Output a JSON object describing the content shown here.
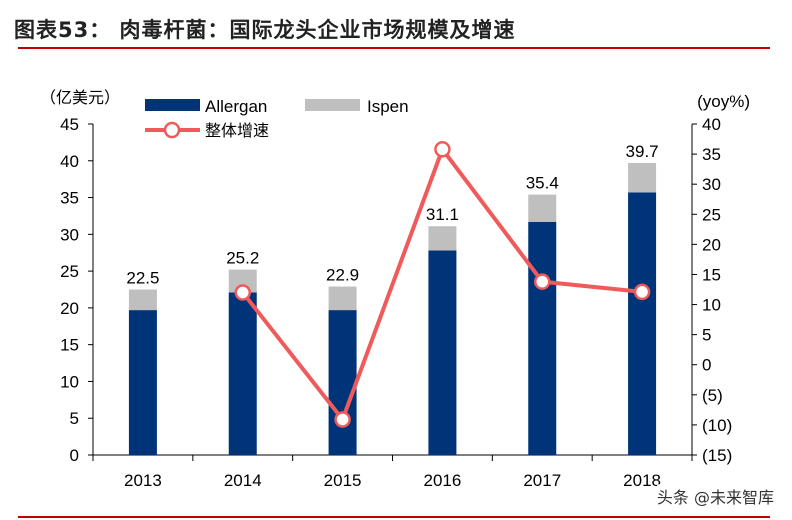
{
  "header": {
    "title": "图表53：  肉毒杆菌：国际龙头企业市场规模及增速"
  },
  "watermark": "头条 @未来智库",
  "colors": {
    "allergan": "#003478",
    "ispen": "#bfbfbf",
    "growth": "#f05a5a",
    "rule": "#c00000"
  },
  "chart_data": {
    "type": "bar",
    "stacked": true,
    "categories": [
      "2013",
      "2014",
      "2015",
      "2016",
      "2017",
      "2018"
    ],
    "series": [
      {
        "name": "Allergan",
        "axis": "left",
        "values": [
          19.7,
          22.1,
          19.7,
          27.8,
          31.7,
          35.7
        ]
      },
      {
        "name": "Ispen",
        "axis": "left",
        "values": [
          2.8,
          3.1,
          3.2,
          3.3,
          3.7,
          4.0
        ]
      },
      {
        "name": "整体增速",
        "type": "line",
        "axis": "right",
        "values": [
          null,
          12.0,
          -9.1,
          35.8,
          13.8,
          12.1
        ]
      }
    ],
    "totals_labels": [
      "22.5",
      "25.2",
      "22.9",
      "31.1",
      "35.4",
      "39.7"
    ],
    "left_axis": {
      "label": "（亿美元）",
      "ylim": [
        0,
        45
      ],
      "ticks": [
        "0",
        "5",
        "10",
        "15",
        "20",
        "25",
        "30",
        "35",
        "40",
        "45"
      ]
    },
    "right_axis": {
      "label": "(yoy%)",
      "ylim": [
        -15,
        40
      ],
      "ticks": [
        "(15)",
        "(10)",
        "(5)",
        "0",
        "5",
        "10",
        "15",
        "20",
        "25",
        "30",
        "35",
        "40"
      ]
    },
    "legend": "top-left",
    "grid": false
  }
}
